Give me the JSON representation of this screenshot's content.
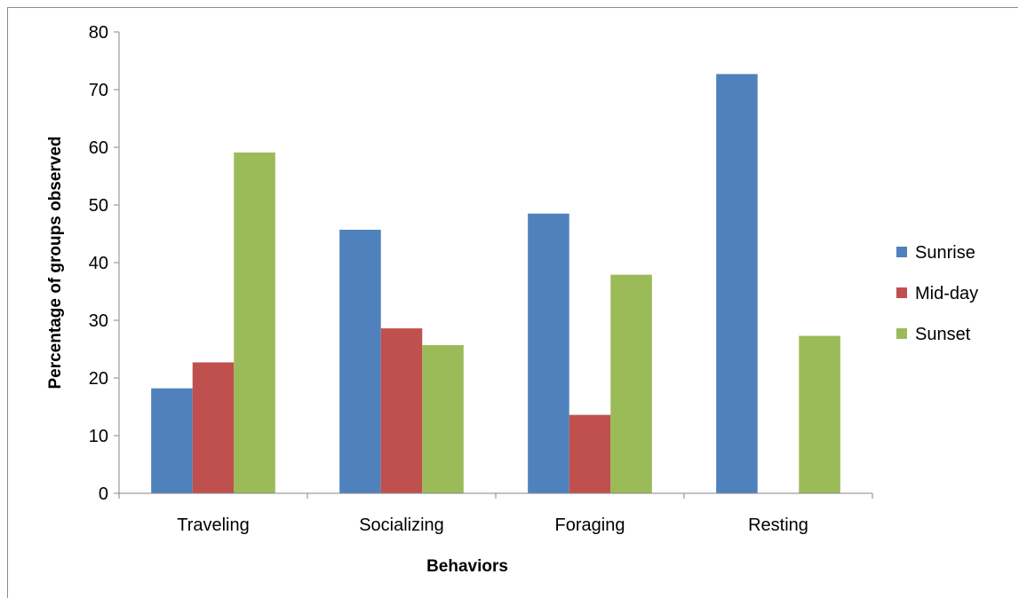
{
  "chart_data": {
    "type": "bar",
    "title": "",
    "xlabel": "Behaviors",
    "ylabel": "Percentage of groups observed",
    "categories": [
      "Traveling",
      "Socializing",
      "Foraging",
      "Resting"
    ],
    "series": [
      {
        "name": "Sunrise",
        "color": "#4F81BD",
        "values": [
          18.2,
          45.7,
          48.5,
          72.7
        ]
      },
      {
        "name": "Mid-day",
        "color": "#C0504D",
        "values": [
          22.7,
          28.6,
          13.6,
          0
        ]
      },
      {
        "name": "Sunset",
        "color": "#9BBB59",
        "values": [
          59.1,
          25.7,
          37.9,
          27.3
        ]
      }
    ],
    "ylim": [
      0,
      80
    ],
    "yticks": [
      "0",
      "10",
      "20",
      "30",
      "40",
      "50",
      "60",
      "70",
      "80"
    ],
    "grid": false,
    "legend_position": "right"
  }
}
